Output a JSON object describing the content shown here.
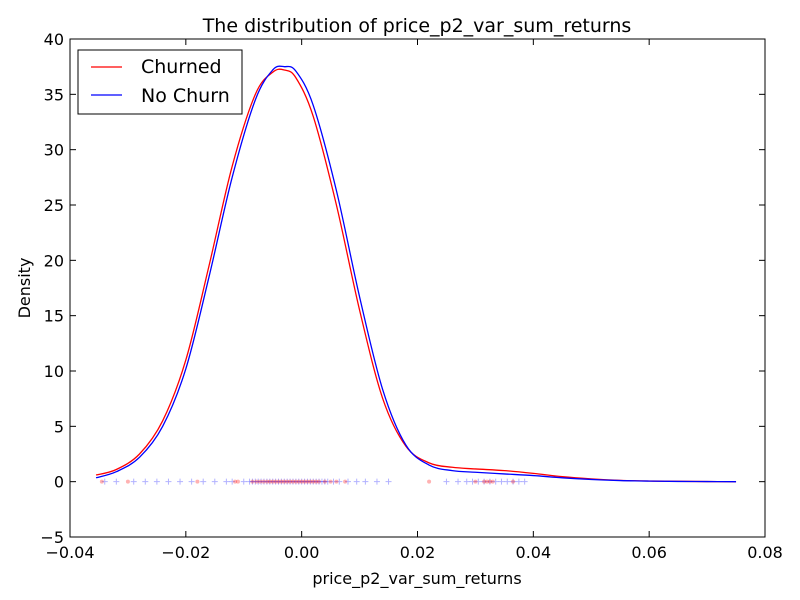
{
  "chart_data": {
    "type": "line",
    "title": "The distribution of price_p2_var_sum_returns",
    "xlabel": "price_p2_var_sum_returns",
    "ylabel": "Density",
    "xlim": [
      -0.04,
      0.08
    ],
    "ylim": [
      -5,
      40
    ],
    "xticks": [
      -0.04,
      -0.02,
      0.0,
      0.02,
      0.04,
      0.06,
      0.08
    ],
    "xtick_labels": [
      "−0.04",
      "−0.02",
      "0.00",
      "0.02",
      "0.04",
      "0.06",
      "0.08"
    ],
    "yticks": [
      -5,
      0,
      5,
      10,
      15,
      20,
      25,
      30,
      35,
      40
    ],
    "ytick_labels": [
      "−5",
      "0",
      "5",
      "10",
      "15",
      "20",
      "25",
      "30",
      "35",
      "40"
    ],
    "grid": false,
    "legend_position": "top-left",
    "series": [
      {
        "name": "Churned",
        "color": "#ff0000",
        "x": [
          -0.0355,
          -0.032,
          -0.028,
          -0.024,
          -0.02,
          -0.016,
          -0.012,
          -0.008,
          -0.005,
          -0.003,
          -0.001,
          0.002,
          0.006,
          0.01,
          0.014,
          0.018,
          0.022,
          0.026,
          0.03,
          0.035,
          0.04,
          0.045,
          0.05,
          0.055,
          0.06,
          0.065,
          0.07,
          0.075
        ],
        "y": [
          0.6,
          1.1,
          2.5,
          5.5,
          11.0,
          19.5,
          28.5,
          35.0,
          37.0,
          37.2,
          36.5,
          33.0,
          25.0,
          15.5,
          7.5,
          3.2,
          1.7,
          1.3,
          1.15,
          1.0,
          0.75,
          0.45,
          0.25,
          0.12,
          0.06,
          0.03,
          0.01,
          0.0
        ],
        "rug": [
          -0.0345,
          -0.03,
          -0.018,
          -0.0115,
          -0.011,
          -0.0085,
          -0.0078,
          -0.0072,
          -0.0066,
          -0.006,
          -0.0055,
          -0.005,
          -0.0045,
          -0.004,
          -0.0035,
          -0.003,
          -0.0025,
          -0.002,
          -0.0015,
          -0.001,
          -0.0005,
          0.0,
          0.0005,
          0.001,
          0.0015,
          0.002,
          0.0025,
          0.003,
          0.004,
          0.005,
          0.006,
          0.0075,
          0.022,
          0.03,
          0.0315,
          0.032,
          0.0325,
          0.033,
          0.0365
        ]
      },
      {
        "name": "No Churn",
        "color": "#0000ff",
        "x": [
          -0.0355,
          -0.032,
          -0.028,
          -0.024,
          -0.02,
          -0.016,
          -0.012,
          -0.008,
          -0.005,
          -0.003,
          -0.001,
          0.002,
          0.006,
          0.01,
          0.014,
          0.018,
          0.022,
          0.026,
          0.03,
          0.035,
          0.04,
          0.045,
          0.05,
          0.055,
          0.06,
          0.065,
          0.07,
          0.075
        ],
        "y": [
          0.35,
          0.9,
          2.2,
          5.0,
          10.2,
          18.5,
          27.5,
          34.5,
          37.2,
          37.5,
          37.1,
          34.0,
          26.3,
          16.7,
          8.3,
          3.3,
          1.5,
          1.0,
          0.85,
          0.7,
          0.55,
          0.35,
          0.2,
          0.1,
          0.05,
          0.02,
          0.01,
          0.0
        ],
        "rug": [
          -0.034,
          -0.032,
          -0.029,
          -0.027,
          -0.025,
          -0.023,
          -0.021,
          -0.019,
          -0.017,
          -0.015,
          -0.013,
          -0.012,
          -0.01,
          -0.009,
          -0.0085,
          -0.008,
          -0.0075,
          -0.007,
          -0.0065,
          -0.006,
          -0.0055,
          -0.005,
          -0.0045,
          -0.004,
          -0.0035,
          -0.003,
          -0.0025,
          -0.002,
          -0.0015,
          -0.001,
          -0.0005,
          0.0,
          0.0005,
          0.001,
          0.0015,
          0.002,
          0.0025,
          0.003,
          0.0035,
          0.004,
          0.0045,
          0.0055,
          0.0065,
          0.008,
          0.0095,
          0.011,
          0.013,
          0.015,
          0.025,
          0.027,
          0.0285,
          0.0295,
          0.0305,
          0.0315,
          0.0325,
          0.0335,
          0.0345,
          0.0355,
          0.0365,
          0.0375,
          0.0385
        ]
      }
    ]
  }
}
